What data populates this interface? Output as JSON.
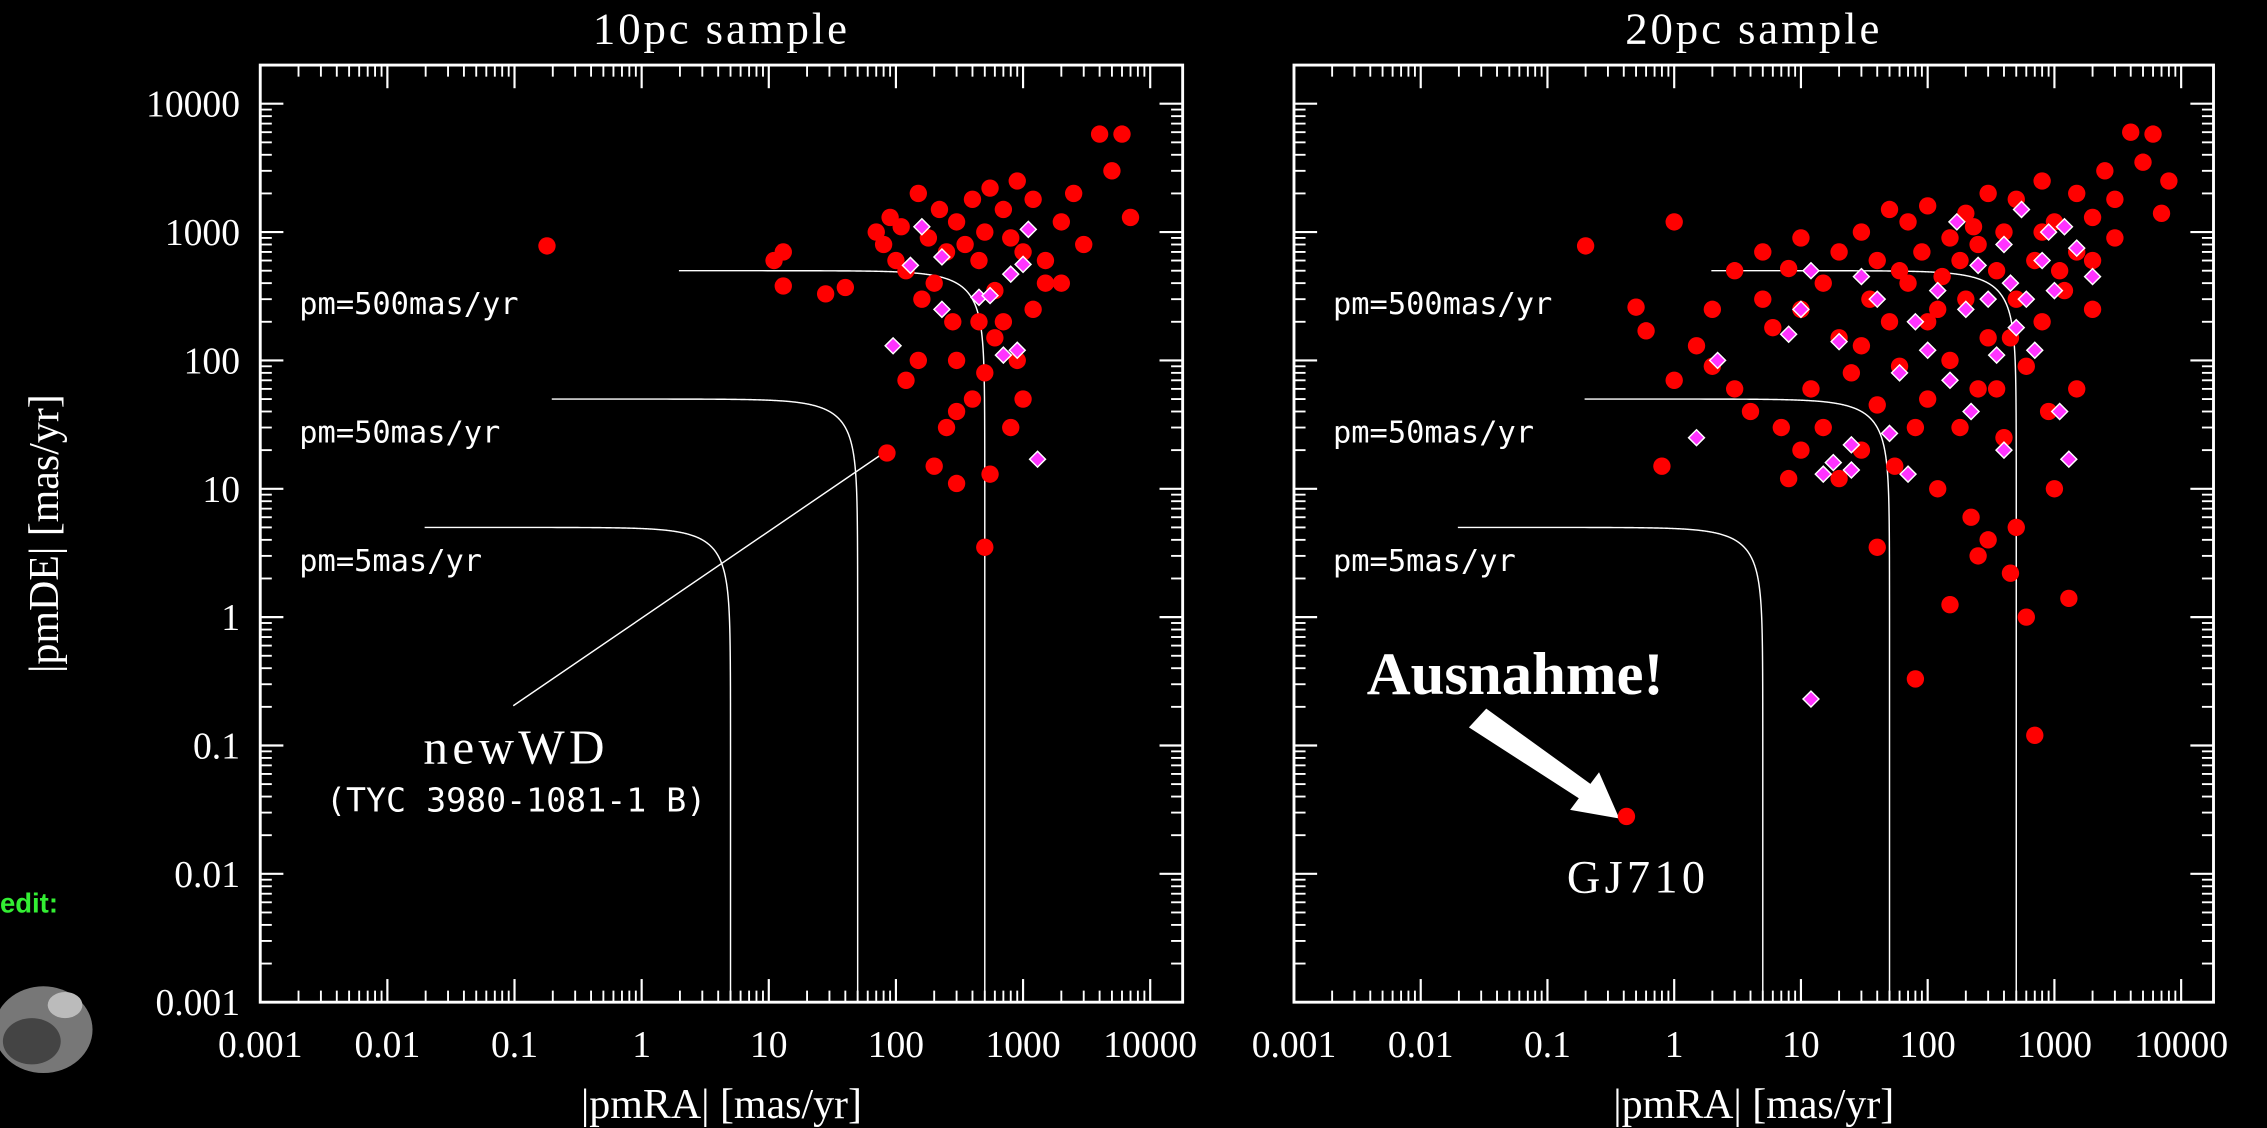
{
  "credit_label": "edit:",
  "chart_data": [
    {
      "type": "scatter",
      "title": "10pc sample",
      "x_label": "|pmRA| [mas/yr]",
      "y_label": "|pmDE| [mas/yr]",
      "log_x": true,
      "log_y": true,
      "xlim": [
        0.001,
        18000
      ],
      "ylim": [
        0.001,
        20000
      ],
      "xticks": [
        0.001,
        0.01,
        0.1,
        1,
        10,
        100,
        1000,
        10000
      ],
      "yticks": [
        0.001,
        0.01,
        0.1,
        1,
        10,
        100,
        1000,
        10000
      ],
      "show_ytick_labels": true,
      "pm_curves": [
        {
          "value": 500,
          "label": "pm=500mas/yr"
        },
        {
          "value": 50,
          "label": "pm=50mas/yr"
        },
        {
          "value": 5,
          "label": "pm=5mas/yr"
        }
      ],
      "annotations": [
        "newWD",
        "(TYC 3980-1081-1 B)"
      ],
      "series": [
        {
          "color": "#ff0000",
          "marker": "circle",
          "x": [
            0.18,
            11,
            13,
            13,
            28,
            40,
            70,
            80,
            90,
            100,
            110,
            120,
            150,
            160,
            180,
            200,
            220,
            250,
            280,
            300,
            350,
            400,
            450,
            500,
            550,
            600,
            700,
            800,
            900,
            1000,
            1200,
            1500,
            2000,
            2500,
            3000,
            4000,
            6000,
            7000,
            5000,
            600,
            500,
            400,
            300,
            250,
            200,
            300,
            550,
            500,
            85,
            700,
            900,
            1000,
            800,
            1200,
            2000,
            150,
            120,
            300,
            450,
            1500
          ],
          "values": [
            780,
            600,
            700,
            380,
            330,
            370,
            1000,
            800,
            1300,
            600,
            1100,
            500,
            2000,
            300,
            900,
            400,
            1500,
            700,
            200,
            1200,
            800,
            1800,
            600,
            1000,
            2200,
            350,
            1500,
            900,
            2500,
            700,
            1800,
            400,
            1200,
            2000,
            800,
            5800,
            5800,
            1300,
            3000,
            150,
            80,
            50,
            40,
            30,
            15,
            11,
            13,
            3.5,
            19,
            200,
            100,
            50,
            30,
            250,
            400,
            100,
            70,
            100,
            200,
            600
          ]
        },
        {
          "color": "#ff33ff",
          "marker": "diamond",
          "x": [
            160,
            130,
            95,
            230,
            230,
            450,
            550,
            700,
            800,
            900,
            1000,
            1100,
            1300
          ],
          "values": [
            1100,
            550,
            130,
            640,
            250,
            310,
            320,
            110,
            470,
            120,
            560,
            1050,
            17
          ]
        }
      ]
    },
    {
      "type": "scatter",
      "title": "20pc sample",
      "x_label": "|pmRA| [mas/yr]",
      "log_x": true,
      "log_y": true,
      "xlim": [
        0.001,
        18000
      ],
      "ylim": [
        0.001,
        20000
      ],
      "xticks": [
        0.001,
        0.01,
        0.1,
        1,
        10,
        100,
        1000,
        10000
      ],
      "yticks": [
        0.001,
        0.01,
        0.1,
        1,
        10,
        100,
        1000,
        10000
      ],
      "show_ytick_labels": false,
      "pm_curves": [
        {
          "value": 500,
          "label": "pm=500mas/yr"
        },
        {
          "value": 50,
          "label": "pm=50mas/yr"
        },
        {
          "value": 5,
          "label": "pm=5mas/yr"
        }
      ],
      "annotations": [
        "Ausnahme!",
        "GJ710"
      ],
      "series": [
        {
          "color": "#ff0000",
          "marker": "circle",
          "x": [
            0.2,
            1,
            0.5,
            0.6,
            0.8,
            1,
            1.5,
            2,
            2,
            3,
            3,
            4,
            5,
            5,
            6,
            7,
            8,
            8,
            10,
            10,
            12,
            15,
            15,
            20,
            20,
            25,
            30,
            30,
            35,
            40,
            40,
            50,
            50,
            55,
            60,
            70,
            70,
            80,
            90,
            100,
            100,
            100,
            120,
            130,
            150,
            150,
            180,
            200,
            200,
            220,
            250,
            250,
            300,
            300,
            300,
            350,
            400,
            400,
            450,
            500,
            500,
            500,
            600,
            600,
            700,
            800,
            800,
            900,
            1000,
            1000,
            1200,
            1300,
            1500,
            1500,
            2000,
            2500,
            3000,
            4000,
            5000,
            6000,
            7000,
            8000,
            2000,
            1500,
            700,
            80,
            150,
            250,
            40,
            20,
            10,
            30,
            60,
            120,
            180,
            230,
            350,
            450,
            800,
            1100,
            3000,
            2000,
            0.42
          ],
          "values": [
            780,
            1200,
            260,
            170,
            15,
            70,
            130,
            250,
            90,
            500,
            60,
            40,
            300,
            700,
            180,
            30,
            12,
            520,
            900,
            250,
            60,
            400,
            30,
            700,
            150,
            80,
            1000,
            20,
            300,
            600,
            45,
            1500,
            200,
            15,
            90,
            400,
            1200,
            30,
            700,
            200,
            50,
            1600,
            10,
            450,
            900,
            100,
            30,
            1400,
            300,
            6,
            60,
            800,
            2000,
            150,
            4,
            500,
            1000,
            25,
            2.2,
            300,
            5,
            1800,
            90,
            1,
            600,
            2500,
            200,
            40,
            1200,
            10,
            350,
            1.4,
            2000,
            700,
            1300,
            3000,
            900,
            6000,
            3500,
            5800,
            1400,
            2500,
            250,
            60,
            0.12,
            0.33,
            1.25,
            3,
            3.5,
            12,
            20,
            130,
            500,
            250,
            600,
            1100,
            60,
            150,
            1000,
            500,
            1800,
            600,
            0.028
          ]
        },
        {
          "color": "#ff33ff",
          "marker": "diamond",
          "x": [
            1.5,
            2.2,
            8,
            10,
            12,
            12,
            15,
            20,
            25,
            30,
            40,
            50,
            60,
            70,
            80,
            100,
            120,
            150,
            170,
            200,
            220,
            250,
            300,
            350,
            400,
            400,
            450,
            500,
            550,
            600,
            700,
            800,
            900,
            1000,
            1100,
            1300,
            1500,
            1200,
            2000,
            25,
            18
          ],
          "values": [
            25,
            100,
            160,
            250,
            500,
            0.23,
            13,
            140,
            22,
            450,
            300,
            27,
            80,
            13,
            200,
            120,
            350,
            70,
            1200,
            250,
            40,
            550,
            300,
            110,
            20,
            800,
            400,
            180,
            1500,
            300,
            120,
            600,
            1000,
            350,
            40,
            17,
            750,
            1100,
            450,
            14,
            16
          ]
        }
      ]
    }
  ]
}
